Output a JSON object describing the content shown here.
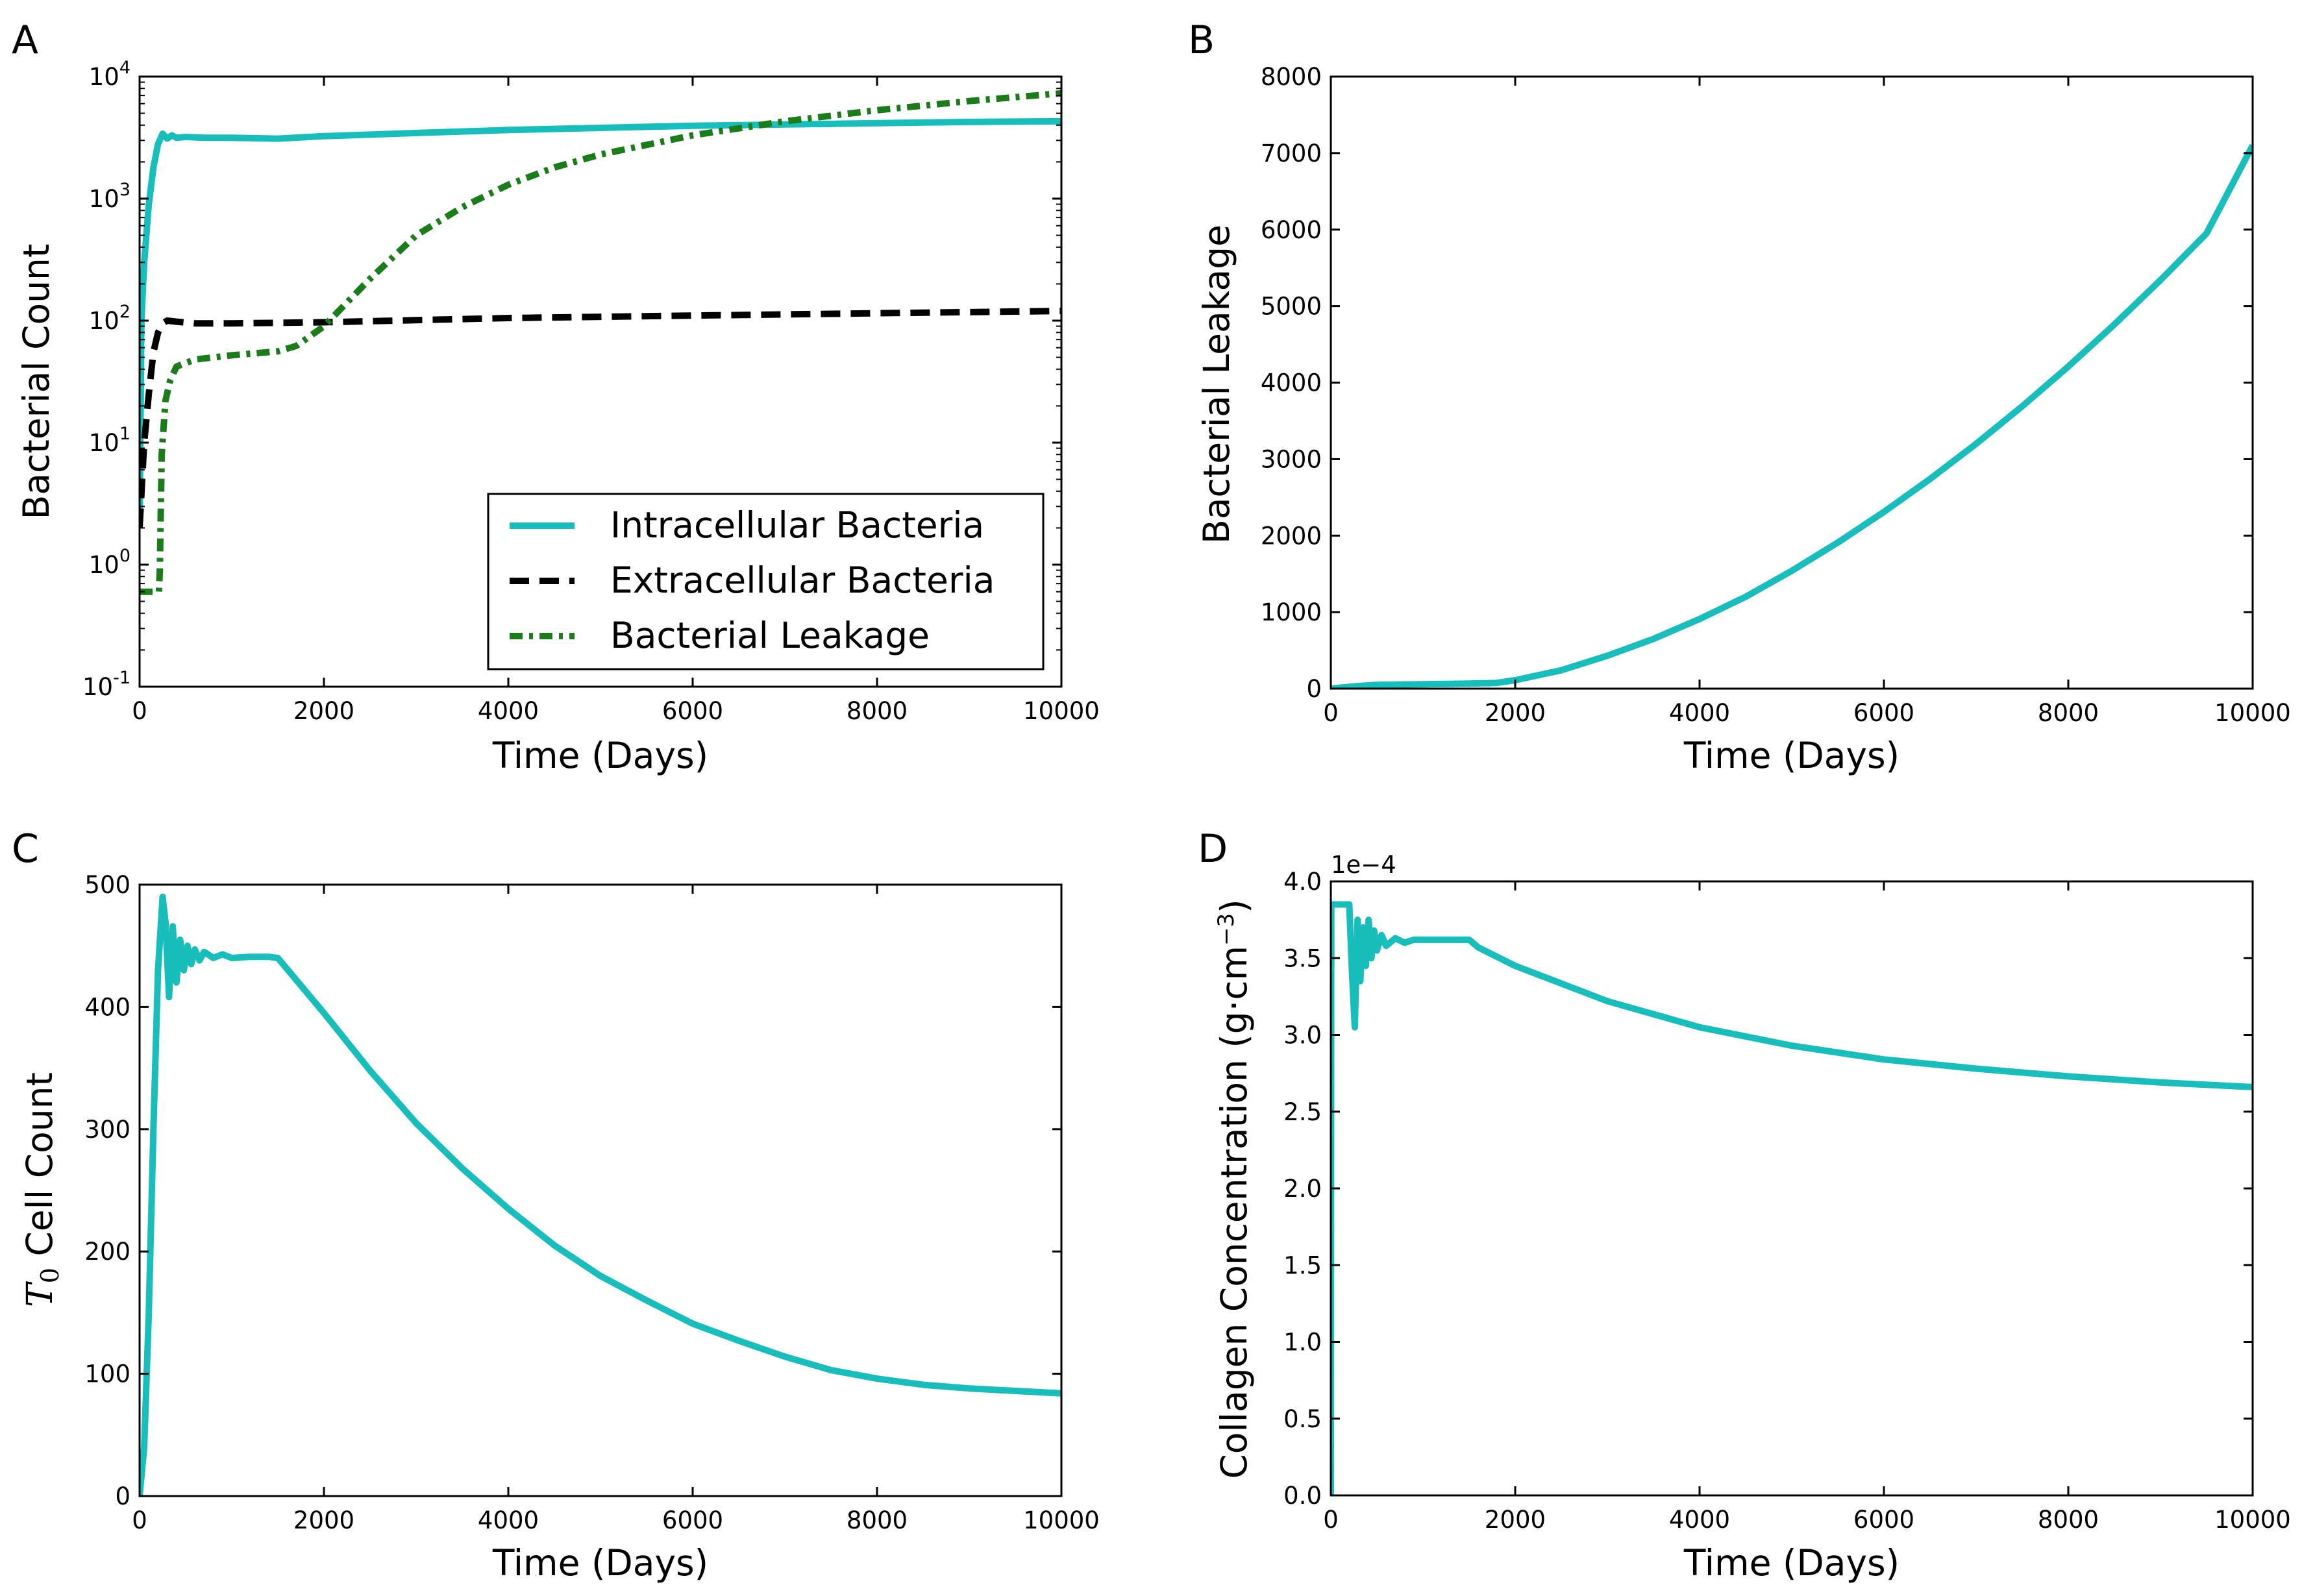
{
  "chart_data": [
    {
      "panel": "A",
      "type": "line",
      "yscale": "log",
      "xlabel": "Time (Days)",
      "ylabel": "Bacterial Count",
      "xlim": [
        0,
        10000
      ],
      "ylim": [
        0.1,
        10000
      ],
      "xticks": [
        "0",
        "2000",
        "4000",
        "6000",
        "8000",
        "10000"
      ],
      "yticks": [
        {
          "base": "10",
          "exp": "4",
          "value": 10000
        },
        {
          "base": "10",
          "exp": "3",
          "value": 1000
        },
        {
          "base": "10",
          "exp": "2",
          "value": 100
        },
        {
          "base": "10",
          "exp": "1",
          "value": 10
        },
        {
          "base": "10",
          "exp": "0",
          "value": 1
        },
        {
          "base": "10",
          "exp": "-1",
          "value": 0.1
        }
      ],
      "legend_position": "lower-right",
      "series": [
        {
          "name": "Intracellular Bacteria",
          "color": "#17bebb",
          "style": "solid",
          "x": [
            0,
            20,
            50,
            100,
            150,
            200,
            250,
            300,
            350,
            400,
            500,
            700,
            1000,
            1500,
            2000,
            3000,
            4000,
            5000,
            6000,
            7000,
            8000,
            9000,
            10000
          ],
          "y": [
            2,
            100,
            300,
            900,
            1800,
            2800,
            3400,
            3100,
            3300,
            3150,
            3200,
            3150,
            3150,
            3100,
            3250,
            3450,
            3650,
            3800,
            3950,
            4050,
            4150,
            4250,
            4300
          ]
        },
        {
          "name": "Extracellular Bacteria",
          "color": "#000000",
          "style": "dashed",
          "x": [
            0,
            50,
            100,
            150,
            200,
            250,
            300,
            400,
            600,
            1000,
            2000,
            4000,
            6000,
            8000,
            10000
          ],
          "y": [
            2,
            10,
            25,
            55,
            80,
            95,
            100,
            98,
            95,
            95,
            97,
            105,
            110,
            115,
            120
          ]
        },
        {
          "name": "Bacterial Leakage",
          "color": "#1a7d1a",
          "style": "dashdot",
          "x": [
            0,
            210,
            220,
            240,
            280,
            330,
            400,
            600,
            1000,
            1500,
            1700,
            2000,
            2500,
            3000,
            3500,
            4000,
            4500,
            5000,
            6000,
            7000,
            8000,
            9000,
            10000
          ],
          "y": [
            0.6,
            0.6,
            0.9,
            8,
            22,
            32,
            42,
            48,
            52,
            56,
            62,
            90,
            220,
            500,
            850,
            1300,
            1800,
            2300,
            3300,
            4300,
            5300,
            6300,
            7300
          ]
        }
      ]
    },
    {
      "panel": "B",
      "type": "line",
      "xlabel": "Time (Days)",
      "ylabel": "Bacterial Leakage",
      "xlim": [
        0,
        10000
      ],
      "ylim": [
        0,
        8000
      ],
      "xticks": [
        "0",
        "2000",
        "4000",
        "6000",
        "8000",
        "10000"
      ],
      "yticks": [
        "0",
        "1000",
        "2000",
        "3000",
        "4000",
        "5000",
        "6000",
        "7000",
        "8000"
      ],
      "series": [
        {
          "name": "Bacterial Leakage",
          "color": "#17bebb",
          "x": [
            0,
            250,
            500,
            1000,
            1500,
            1800,
            2000,
            2500,
            3000,
            3500,
            4000,
            4500,
            5000,
            5500,
            6000,
            6500,
            7000,
            7500,
            8000,
            8500,
            9000,
            9500,
            10000
          ],
          "y": [
            0,
            30,
            50,
            58,
            65,
            75,
            110,
            240,
            430,
            650,
            910,
            1200,
            1540,
            1910,
            2310,
            2740,
            3200,
            3690,
            4210,
            4760,
            5340,
            5950,
            7100
          ]
        }
      ]
    },
    {
      "panel": "C",
      "type": "line",
      "xlabel": "Time (Days)",
      "ylabel_math": "T",
      "ylabel_sub": "0",
      "ylabel_rest": "Cell Count",
      "xlim": [
        0,
        10000
      ],
      "ylim": [
        0,
        500
      ],
      "xticks": [
        "0",
        "2000",
        "4000",
        "6000",
        "8000",
        "10000"
      ],
      "yticks": [
        "0",
        "100",
        "200",
        "300",
        "400",
        "500"
      ],
      "series": [
        {
          "name": "T0 Cell Count",
          "color": "#17bebb",
          "x": [
            0,
            50,
            100,
            150,
            200,
            250,
            280,
            320,
            360,
            400,
            440,
            480,
            520,
            560,
            600,
            650,
            700,
            800,
            900,
            1000,
            1200,
            1400,
            1500,
            2000,
            2500,
            3000,
            3500,
            4000,
            4500,
            5000,
            5500,
            6000,
            6500,
            7000,
            7500,
            8000,
            8500,
            9000,
            9500,
            10000
          ],
          "y": [
            0,
            40,
            150,
            300,
            430,
            490,
            470,
            408,
            466,
            420,
            455,
            430,
            450,
            435,
            447,
            438,
            445,
            440,
            443,
            440,
            441,
            441,
            440,
            395,
            348,
            305,
            268,
            235,
            205,
            180,
            160,
            141,
            127,
            114,
            103,
            96,
            91,
            88,
            86,
            84
          ]
        }
      ]
    },
    {
      "panel": "D",
      "type": "line",
      "xlabel": "Time (Days)",
      "ylabel_main": "Collagen Concentration (g·cm",
      "ylabel_sup": "−3",
      "ylabel_close": ")",
      "offset_text": "1e−4",
      "xlim": [
        0,
        10000
      ],
      "ylim": [
        0,
        4.0
      ],
      "xticks": [
        "0",
        "2000",
        "4000",
        "6000",
        "8000",
        "10000"
      ],
      "yticks": [
        "0.0",
        "0.5",
        "1.0",
        "1.5",
        "2.0",
        "2.5",
        "3.0",
        "3.5",
        "4.0"
      ],
      "series": [
        {
          "name": "Collagen Concentration",
          "color": "#17bebb",
          "x": [
            0,
            5,
            10,
            20,
            200,
            230,
            260,
            290,
            320,
            350,
            380,
            410,
            440,
            470,
            500,
            550,
            600,
            700,
            800,
            900,
            1000,
            1200,
            1400,
            1500,
            1600,
            2000,
            3000,
            4000,
            5000,
            6000,
            7000,
            8000,
            9000,
            10000
          ],
          "y": [
            0,
            3.85,
            3.85,
            3.85,
            3.85,
            3.4,
            3.05,
            3.75,
            3.35,
            3.7,
            3.45,
            3.75,
            3.5,
            3.68,
            3.55,
            3.65,
            3.58,
            3.63,
            3.6,
            3.62,
            3.62,
            3.62,
            3.62,
            3.62,
            3.57,
            3.45,
            3.22,
            3.05,
            2.93,
            2.84,
            2.78,
            2.73,
            2.69,
            2.66
          ]
        }
      ]
    }
  ],
  "panel_letters": [
    "A",
    "B",
    "C",
    "D"
  ]
}
